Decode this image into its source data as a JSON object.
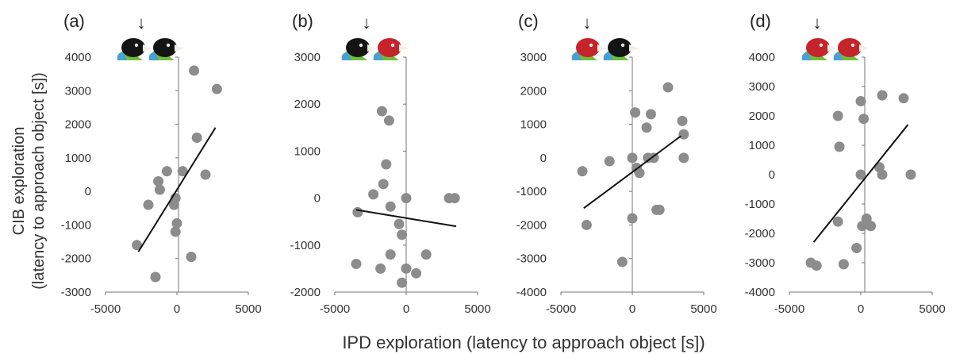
{
  "colors": {
    "points": "#8c8c8c",
    "trendline": "#111111",
    "axis": "#777777",
    "black_head": "#141414",
    "red_head": "#c4242a",
    "blue_body": "#4aa0d0",
    "green_body": "#6fbf3a",
    "beak": "#f3efe6"
  },
  "shared": {
    "ylabel_line1": "CIB exploration",
    "ylabel_line2": "(latency to approach object [s])",
    "xlabel": "IPD exploration (latency to approach object [s])",
    "arrow": "↓"
  },
  "chart_data": [
    {
      "type": "scatter",
      "panel_label": "(a)",
      "bird_heads": [
        "black",
        "black"
      ],
      "xlim": [
        -5000,
        5000
      ],
      "ylim": [
        -3000,
        4000
      ],
      "xticks": [
        -5000,
        0,
        5000
      ],
      "yticks": [
        -3000,
        -2000,
        -1000,
        0,
        1000,
        2000,
        3000,
        4000
      ],
      "tick_labels_x": [
        "-5000",
        "0",
        "5000"
      ],
      "tick_labels_y": [
        "-3000",
        "-2000",
        "-1000",
        "0",
        "1000",
        "2000",
        "3000",
        "4000"
      ],
      "points": [
        [
          -2800,
          -1600
        ],
        [
          -2000,
          -400
        ],
        [
          -1500,
          -2550
        ],
        [
          -1300,
          300
        ],
        [
          -1200,
          50
        ],
        [
          -700,
          600
        ],
        [
          -200,
          -400
        ],
        [
          -100,
          -200
        ],
        [
          0,
          -950
        ],
        [
          -100,
          -1200
        ],
        [
          400,
          600
        ],
        [
          1000,
          -1950
        ],
        [
          1200,
          3600
        ],
        [
          1400,
          1600
        ],
        [
          2000,
          500
        ],
        [
          2800,
          3050
        ]
      ],
      "trendline": [
        [
          -2700,
          -1800
        ],
        [
          2700,
          1900
        ]
      ]
    },
    {
      "type": "scatter",
      "panel_label": "(b)",
      "bird_heads": [
        "black",
        "red"
      ],
      "xlim": [
        -5000,
        5000
      ],
      "ylim": [
        -2000,
        3000
      ],
      "xticks": [
        -5000,
        0,
        5000
      ],
      "yticks": [
        -2000,
        -1000,
        0,
        1000,
        2000,
        3000
      ],
      "tick_labels_x": [
        "-5000",
        "0",
        "5000"
      ],
      "tick_labels_y": [
        "-2000",
        "-1000",
        "0",
        "1000",
        "2000",
        "3000"
      ],
      "points": [
        [
          -3400,
          -300
        ],
        [
          -3500,
          -1400
        ],
        [
          -2300,
          80
        ],
        [
          -1800,
          -1500
        ],
        [
          -1700,
          1850
        ],
        [
          -1600,
          300
        ],
        [
          -1400,
          720
        ],
        [
          -1200,
          1650
        ],
        [
          -1100,
          -180
        ],
        [
          -1100,
          -1200
        ],
        [
          -500,
          -550
        ],
        [
          -300,
          -780
        ],
        [
          -300,
          -1800
        ],
        [
          0,
          0
        ],
        [
          0,
          -1500
        ],
        [
          700,
          -1600
        ],
        [
          1400,
          -1200
        ],
        [
          3000,
          0
        ],
        [
          3400,
          0
        ]
      ],
      "trendline": [
        [
          -3500,
          -250
        ],
        [
          3500,
          -600
        ]
      ]
    },
    {
      "type": "scatter",
      "panel_label": "(c)",
      "bird_heads": [
        "red",
        "black"
      ],
      "xlim": [
        -5000,
        5000
      ],
      "ylim": [
        -4000,
        3000
      ],
      "xticks": [
        -5000,
        0,
        5000
      ],
      "yticks": [
        -4000,
        -3000,
        -2000,
        -1000,
        0,
        1000,
        2000,
        3000
      ],
      "tick_labels_x": [
        "-5000",
        "0",
        "5000"
      ],
      "tick_labels_y": [
        "-4000",
        "-3000",
        "-2000",
        "-1000",
        "0",
        "1000",
        "2000",
        "3000"
      ],
      "points": [
        [
          -3500,
          -400
        ],
        [
          -3200,
          -2000
        ],
        [
          -1600,
          -100
        ],
        [
          -700,
          -3100
        ],
        [
          0,
          0
        ],
        [
          0,
          -1800
        ],
        [
          200,
          1350
        ],
        [
          300,
          -300
        ],
        [
          500,
          -450
        ],
        [
          1000,
          900
        ],
        [
          1100,
          0
        ],
        [
          1300,
          1300
        ],
        [
          1500,
          0
        ],
        [
          1700,
          -1550
        ],
        [
          1900,
          -1550
        ],
        [
          2500,
          2100
        ],
        [
          3500,
          1100
        ],
        [
          3600,
          700
        ],
        [
          3600,
          0
        ]
      ],
      "trendline": [
        [
          -3400,
          -1500
        ],
        [
          3400,
          650
        ]
      ]
    },
    {
      "type": "scatter",
      "panel_label": "(d)",
      "bird_heads": [
        "red",
        "red"
      ],
      "xlim": [
        -5000,
        5000
      ],
      "ylim": [
        -4000,
        4000
      ],
      "xticks": [
        -5000,
        0,
        5000
      ],
      "yticks": [
        -4000,
        -3000,
        -2000,
        -1000,
        0,
        1000,
        2000,
        3000,
        4000
      ],
      "tick_labels_x": [
        "-5000",
        "0",
        "5000"
      ],
      "tick_labels_y": [
        "-4000",
        "-3000",
        "-2000",
        "-1000",
        "0",
        "1000",
        "2000",
        "3000",
        "4000"
      ],
      "points": [
        [
          -3500,
          -3000
        ],
        [
          -3100,
          -3100
        ],
        [
          -1600,
          2000
        ],
        [
          -1500,
          950
        ],
        [
          -1600,
          -1600
        ],
        [
          -1200,
          -3050
        ],
        [
          -300,
          -2500
        ],
        [
          0,
          2500
        ],
        [
          0,
          0
        ],
        [
          100,
          -1750
        ],
        [
          200,
          1900
        ],
        [
          400,
          -1500
        ],
        [
          700,
          -1750
        ],
        [
          1300,
          250
        ],
        [
          1500,
          0
        ],
        [
          1500,
          2700
        ],
        [
          3000,
          2600
        ],
        [
          3500,
          0
        ]
      ],
      "trendline": [
        [
          -3300,
          -2300
        ],
        [
          3300,
          1700
        ]
      ]
    }
  ]
}
